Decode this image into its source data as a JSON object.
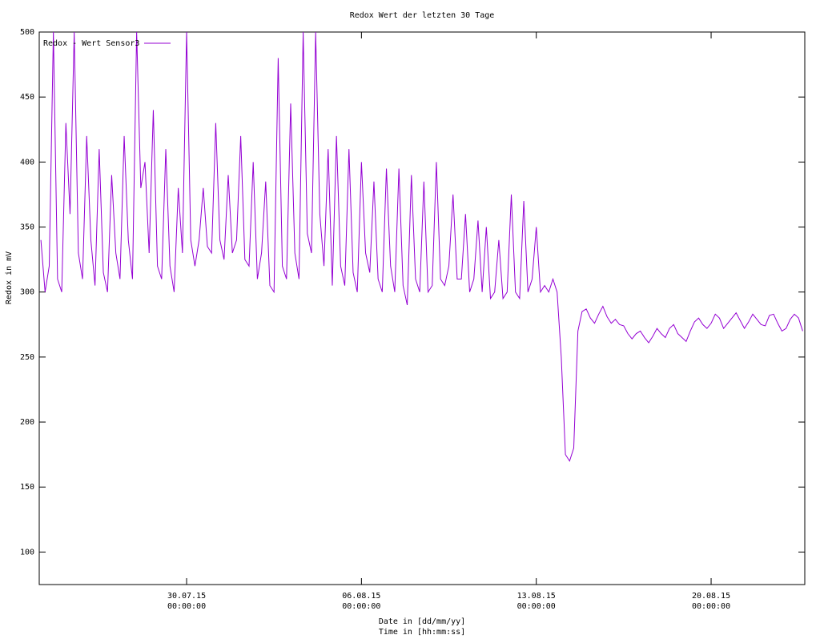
{
  "chart_data": {
    "type": "line",
    "title": "Redox Wert der letzten 30 Tage",
    "xlabel": [
      "Date in [dd/mm/yy]",
      "Time in [hh:mm:ss]"
    ],
    "ylabel": "Redox in mV",
    "xlim": [
      "24.07.15 02:24:00",
      "23.08.15 18:00:00"
    ],
    "ylim": [
      75,
      500
    ],
    "yticks": [
      100,
      150,
      200,
      250,
      300,
      350,
      400,
      450,
      500
    ],
    "xticks": [
      {
        "value": "30.07.15 00:00:00",
        "label": [
          "30.07.15",
          "00:00:00"
        ]
      },
      {
        "value": "06.08.15 00:00:00",
        "label": [
          "06.08.15",
          "00:00:00"
        ]
      },
      {
        "value": "13.08.15 00:00:00",
        "label": [
          "13.08.15",
          "00:00:00"
        ]
      },
      {
        "value": "20.08.15 00:00:00",
        "label": [
          "20.08.15",
          "00:00:00"
        ]
      }
    ],
    "legend": "top-left",
    "x": [
      "24.07.15 04:00:00",
      "24.07.15 08:00:00",
      "24.07.15 12:00:00",
      "24.07.15 16:00:00",
      "24.07.15 20:00:00",
      "25.07.15 00:00:00",
      "25.07.15 04:00:00",
      "25.07.15 08:00:00",
      "25.07.15 12:00:00",
      "25.07.15 16:00:00",
      "25.07.15 20:00:00",
      "26.07.15 00:00:00",
      "26.07.15 04:00:00",
      "26.07.15 08:00:00",
      "26.07.15 12:00:00",
      "26.07.15 16:00:00",
      "26.07.15 20:00:00",
      "27.07.15 00:00:00",
      "27.07.15 04:00:00",
      "27.07.15 08:00:00",
      "27.07.15 12:00:00",
      "27.07.15 16:00:00",
      "27.07.15 20:00:00",
      "28.07.15 00:00:00",
      "28.07.15 04:00:00",
      "28.07.15 08:00:00",
      "28.07.15 12:00:00",
      "28.07.15 16:00:00",
      "28.07.15 20:00:00",
      "29.07.15 00:00:00",
      "29.07.15 04:00:00",
      "29.07.15 08:00:00",
      "29.07.15 12:00:00",
      "29.07.15 16:00:00",
      "29.07.15 20:00:00",
      "30.07.15 00:00:00",
      "30.07.15 04:00:00",
      "30.07.15 08:00:00",
      "30.07.15 12:00:00",
      "30.07.15 16:00:00",
      "30.07.15 20:00:00",
      "31.07.15 00:00:00",
      "31.07.15 04:00:00",
      "31.07.15 08:00:00",
      "31.07.15 12:00:00",
      "31.07.15 16:00:00",
      "31.07.15 20:00:00",
      "01.08.15 00:00:00",
      "01.08.15 04:00:00",
      "01.08.15 08:00:00",
      "01.08.15 12:00:00",
      "01.08.15 16:00:00",
      "01.08.15 20:00:00",
      "02.08.15 00:00:00",
      "02.08.15 04:00:00",
      "02.08.15 08:00:00",
      "02.08.15 12:00:00",
      "02.08.15 16:00:00",
      "02.08.15 20:00:00",
      "03.08.15 00:00:00",
      "03.08.15 04:00:00",
      "03.08.15 08:00:00",
      "03.08.15 12:00:00",
      "03.08.15 16:00:00",
      "03.08.15 20:00:00",
      "04.08.15 00:00:00",
      "04.08.15 04:00:00",
      "04.08.15 08:00:00",
      "04.08.15 12:00:00",
      "04.08.15 16:00:00",
      "04.08.15 20:00:00",
      "05.08.15 00:00:00",
      "05.08.15 04:00:00",
      "05.08.15 08:00:00",
      "05.08.15 12:00:00",
      "05.08.15 16:00:00",
      "05.08.15 20:00:00",
      "06.08.15 00:00:00",
      "06.08.15 04:00:00",
      "06.08.15 08:00:00",
      "06.08.15 12:00:00",
      "06.08.15 16:00:00",
      "06.08.15 20:00:00",
      "07.08.15 00:00:00",
      "07.08.15 04:00:00",
      "07.08.15 08:00:00",
      "07.08.15 12:00:00",
      "07.08.15 16:00:00",
      "07.08.15 20:00:00",
      "08.08.15 00:00:00",
      "08.08.15 04:00:00",
      "08.08.15 08:00:00",
      "08.08.15 12:00:00",
      "08.08.15 16:00:00",
      "08.08.15 20:00:00",
      "09.08.15 00:00:00",
      "09.08.15 04:00:00",
      "09.08.15 08:00:00",
      "09.08.15 12:00:00",
      "09.08.15 16:00:00",
      "09.08.15 20:00:00",
      "10.08.15 00:00:00",
      "10.08.15 04:00:00",
      "10.08.15 08:00:00",
      "10.08.15 12:00:00",
      "10.08.15 16:00:00",
      "10.08.15 20:00:00",
      "11.08.15 00:00:00",
      "11.08.15 04:00:00",
      "11.08.15 08:00:00",
      "11.08.15 12:00:00",
      "11.08.15 16:00:00",
      "11.08.15 20:00:00",
      "12.08.15 00:00:00",
      "12.08.15 04:00:00",
      "12.08.15 08:00:00",
      "12.08.15 12:00:00",
      "12.08.15 16:00:00",
      "12.08.15 20:00:00",
      "13.08.15 00:00:00",
      "13.08.15 04:00:00",
      "13.08.15 08:00:00",
      "13.08.15 12:00:00",
      "13.08.15 16:00:00",
      "13.08.15 20:00:00",
      "14.08.15 00:00:00",
      "14.08.15 04:00:00",
      "14.08.15 08:00:00",
      "14.08.15 12:00:00",
      "14.08.15 16:00:00",
      "14.08.15 20:00:00",
      "15.08.15 00:00:00",
      "15.08.15 04:00:00",
      "15.08.15 08:00:00",
      "15.08.15 12:00:00",
      "15.08.15 16:00:00",
      "15.08.15 20:00:00",
      "16.08.15 00:00:00",
      "16.08.15 04:00:00",
      "16.08.15 08:00:00",
      "16.08.15 12:00:00",
      "16.08.15 16:00:00",
      "16.08.15 20:00:00",
      "17.08.15 00:00:00",
      "17.08.15 04:00:00",
      "17.08.15 08:00:00",
      "17.08.15 12:00:00",
      "17.08.15 16:00:00",
      "17.08.15 20:00:00",
      "18.08.15 00:00:00",
      "18.08.15 04:00:00",
      "18.08.15 08:00:00",
      "18.08.15 12:00:00",
      "18.08.15 16:00:00",
      "18.08.15 20:00:00",
      "19.08.15 00:00:00",
      "19.08.15 04:00:00",
      "19.08.15 08:00:00",
      "19.08.15 12:00:00",
      "19.08.15 16:00:00",
      "19.08.15 20:00:00",
      "20.08.15 00:00:00",
      "20.08.15 04:00:00",
      "20.08.15 08:00:00",
      "20.08.15 12:00:00",
      "20.08.15 16:00:00",
      "20.08.15 20:00:00",
      "21.08.15 00:00:00",
      "21.08.15 04:00:00",
      "21.08.15 08:00:00",
      "21.08.15 12:00:00",
      "21.08.15 16:00:00",
      "21.08.15 20:00:00",
      "22.08.15 00:00:00",
      "22.08.15 04:00:00",
      "22.08.15 08:00:00",
      "22.08.15 12:00:00",
      "22.08.15 16:00:00",
      "22.08.15 20:00:00",
      "23.08.15 00:00:00",
      "23.08.15 04:00:00",
      "23.08.15 08:00:00",
      "23.08.15 12:00:00",
      "23.08.15 16:00:00"
    ],
    "series": [
      {
        "name": "Redox - Wert Sensor3",
        "color": "#9400d3",
        "values": [
          340,
          300,
          320,
          500,
          310,
          300,
          430,
          360,
          500,
          330,
          310,
          420,
          340,
          305,
          410,
          315,
          300,
          390,
          330,
          310,
          420,
          340,
          310,
          500,
          380,
          400,
          330,
          440,
          320,
          310,
          410,
          320,
          300,
          380,
          330,
          500,
          340,
          320,
          340,
          380,
          335,
          330,
          430,
          340,
          325,
          390,
          330,
          340,
          420,
          325,
          320,
          400,
          310,
          330,
          385,
          305,
          300,
          480,
          320,
          310,
          445,
          330,
          310,
          500,
          345,
          330,
          500,
          360,
          320,
          410,
          305,
          420,
          320,
          305,
          410,
          315,
          300,
          400,
          330,
          315,
          385,
          310,
          300,
          395,
          320,
          300,
          395,
          305,
          290,
          390,
          310,
          300,
          385,
          300,
          305,
          400,
          310,
          305,
          320,
          375,
          310,
          310,
          360,
          300,
          310,
          355,
          300,
          350,
          295,
          300,
          340,
          295,
          300,
          375,
          300,
          295,
          370,
          300,
          310,
          350,
          300,
          305,
          300,
          310,
          300,
          250,
          175,
          170,
          180,
          270,
          285,
          287,
          280,
          276,
          283,
          289,
          281,
          276,
          279,
          275,
          274,
          268,
          264,
          268,
          270,
          265,
          261,
          266,
          272,
          268,
          265,
          272,
          275,
          268,
          265,
          262,
          270,
          277,
          280,
          275,
          272,
          276,
          283,
          280,
          272,
          276,
          280,
          284,
          278,
          272,
          277,
          283,
          279,
          275,
          274,
          282,
          283,
          276,
          270,
          272,
          279,
          283,
          280,
          270
        ]
      }
    ]
  }
}
